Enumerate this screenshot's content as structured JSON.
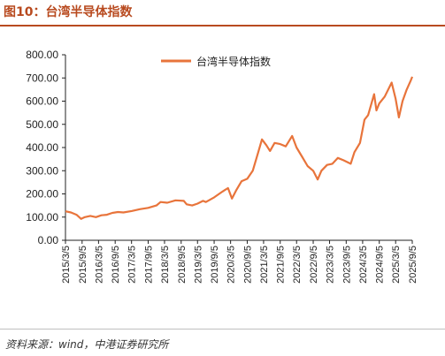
{
  "figure": {
    "label": "图10：",
    "title": "台湾半导体指数"
  },
  "source": "资料来源：wind，中港证券研究所",
  "chart_data": {
    "type": "line",
    "title": "",
    "xlabel": "",
    "ylabel": "",
    "ylim": [
      0,
      800
    ],
    "grid": false,
    "legend_position": "top-center",
    "y_ticks": [
      "0.00",
      "100.00",
      "200.00",
      "300.00",
      "400.00",
      "500.00",
      "600.00",
      "700.00",
      "800.00"
    ],
    "x_ticks": [
      "2015/3/5",
      "2015/9/5",
      "2016/3/5",
      "2016/9/5",
      "2017/3/5",
      "2017/9/5",
      "2018/3/5",
      "2018/9/5",
      "2019/3/5",
      "2019/9/5",
      "2020/3/5",
      "2020/9/5",
      "2021/3/5",
      "2021/9/5",
      "2022/3/5",
      "2022/9/5",
      "2023/3/5",
      "2023/9/5",
      "2024/3/5",
      "2024/9/5",
      "2025/3/5",
      "2025/9/5"
    ],
    "series": [
      {
        "name": "台湾半导体指数",
        "color": "#e8743b",
        "points": [
          [
            "2015/3/5",
            125
          ],
          [
            "2015/5/5",
            120
          ],
          [
            "2015/7/5",
            110
          ],
          [
            "2015/8/25",
            92
          ],
          [
            "2015/10/5",
            100
          ],
          [
            "2015/12/5",
            105
          ],
          [
            "2016/2/5",
            100
          ],
          [
            "2016/4/5",
            108
          ],
          [
            "2016/6/5",
            110
          ],
          [
            "2016/8/5",
            118
          ],
          [
            "2016/10/5",
            122
          ],
          [
            "2016/12/5",
            120
          ],
          [
            "2017/3/5",
            126
          ],
          [
            "2017/6/5",
            134
          ],
          [
            "2017/9/5",
            140
          ],
          [
            "2017/12/5",
            150
          ],
          [
            "2018/1/20",
            165
          ],
          [
            "2018/4/5",
            162
          ],
          [
            "2018/7/5",
            172
          ],
          [
            "2018/10/5",
            170
          ],
          [
            "2018/11/5",
            155
          ],
          [
            "2019/1/5",
            150
          ],
          [
            "2019/3/5",
            158
          ],
          [
            "2019/5/5",
            170
          ],
          [
            "2019/6/5",
            165
          ],
          [
            "2019/9/5",
            185
          ],
          [
            "2019/12/5",
            210
          ],
          [
            "2020/2/5",
            225
          ],
          [
            "2020/3/20",
            180
          ],
          [
            "2020/5/5",
            215
          ],
          [
            "2020/7/5",
            255
          ],
          [
            "2020/9/5",
            265
          ],
          [
            "2020/11/5",
            300
          ],
          [
            "2021/1/5",
            380
          ],
          [
            "2021/2/15",
            435
          ],
          [
            "2021/4/5",
            410
          ],
          [
            "2021/5/15",
            385
          ],
          [
            "2021/7/5",
            420
          ],
          [
            "2021/9/5",
            415
          ],
          [
            "2021/11/5",
            405
          ],
          [
            "2022/1/15",
            450
          ],
          [
            "2022/3/5",
            400
          ],
          [
            "2022/5/5",
            360
          ],
          [
            "2022/7/5",
            320
          ],
          [
            "2022/9/5",
            300
          ],
          [
            "2022/10/25",
            262
          ],
          [
            "2022/12/5",
            300
          ],
          [
            "2023/2/5",
            325
          ],
          [
            "2023/4/5",
            330
          ],
          [
            "2023/6/5",
            355
          ],
          [
            "2023/8/5",
            345
          ],
          [
            "2023/10/25",
            330
          ],
          [
            "2023/12/5",
            380
          ],
          [
            "2024/2/5",
            420
          ],
          [
            "2024/3/25",
            520
          ],
          [
            "2024/5/5",
            540
          ],
          [
            "2024/7/10",
            630
          ],
          [
            "2024/8/5",
            560
          ],
          [
            "2024/9/5",
            590
          ],
          [
            "2024/11/5",
            620
          ],
          [
            "2025/1/20",
            680
          ],
          [
            "2025/3/5",
            610
          ],
          [
            "2025/4/10",
            530
          ],
          [
            "2025/5/20",
            600
          ],
          [
            "2025/7/5",
            650
          ],
          [
            "2025/8/20",
            690
          ],
          [
            "2025/9/5",
            705
          ]
        ]
      }
    ]
  }
}
